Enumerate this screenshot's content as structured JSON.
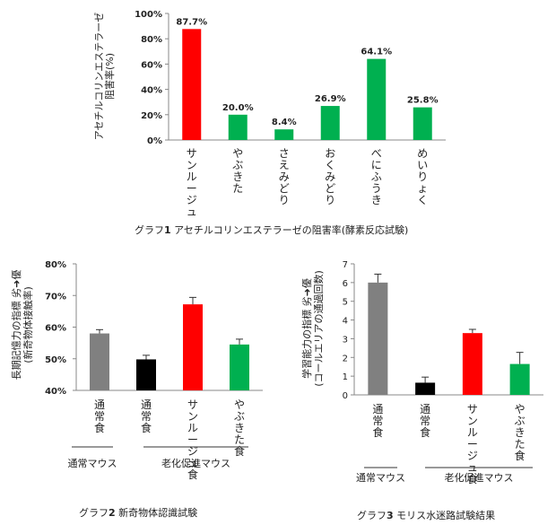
{
  "charts": [
    {
      "caption": {
        "prefix": "グラフ",
        "num": "1",
        "text": "アセチルコリンエステラーゼの阻害率(酵素反応試験)"
      }
    },
    {
      "caption": {
        "prefix": "グラフ",
        "num": "2",
        "text": "新奇物体認識試験"
      }
    },
    {
      "caption": {
        "prefix": "グラフ",
        "num": "3",
        "text": "モリス水迷路試験結果"
      }
    }
  ],
  "chart_data": [
    {
      "type": "bar",
      "ylabel_lines": [
        "アセチルコリンエステラーゼ",
        "阻害率(%)"
      ],
      "ylim": [
        0,
        100
      ],
      "yticks": [
        "0%",
        "20%",
        "40%",
        "60%",
        "80%",
        "100%"
      ],
      "categories": [
        "サンルージュ",
        "やぶきた",
        "さえみどり",
        "おくみどり",
        "べにふうき",
        "めいりょく"
      ],
      "values": [
        87.7,
        20.0,
        8.4,
        26.9,
        64.1,
        25.8
      ],
      "data_labels": [
        "87.7%",
        "20.0%",
        "8.4%",
        "26.9%",
        "64.1%",
        "25.8%"
      ],
      "colors": [
        "#ff0000",
        "#00b050",
        "#00b050",
        "#00b050",
        "#00b050",
        "#00b050"
      ]
    },
    {
      "type": "bar",
      "ylabel_lines": [
        "長期記憶力の指標 劣➜優",
        "(新奇物体接触率)"
      ],
      "ylim": [
        40,
        80
      ],
      "yticks": [
        "40%",
        "50%",
        "60%",
        "70%",
        "80%"
      ],
      "categories": [
        "通常食",
        "通常食",
        "サンルージュ食",
        "やぶきた食"
      ],
      "values": [
        58.0,
        49.8,
        67.2,
        54.5
      ],
      "errors": [
        1.2,
        1.3,
        2.2,
        1.7
      ],
      "colors": [
        "#808080",
        "#000000",
        "#ff0000",
        "#00b050"
      ],
      "groups": [
        {
          "label": "通常マウス",
          "from": 0,
          "to": 0
        },
        {
          "label": "老化促進マウス",
          "from": 1,
          "to": 3
        }
      ]
    },
    {
      "type": "bar",
      "ylabel_lines": [
        "学習能力の指標 劣➜優",
        "(コールエリアの通過回数)"
      ],
      "ylim": [
        0,
        7
      ],
      "yticks": [
        "0",
        "1",
        "2",
        "3",
        "4",
        "5",
        "6",
        "7"
      ],
      "categories": [
        "通常食",
        "通常食",
        "サンルージュ食",
        "やぶきた食"
      ],
      "values": [
        6.0,
        0.65,
        3.3,
        1.65
      ],
      "errors": [
        0.45,
        0.3,
        0.2,
        0.62
      ],
      "colors": [
        "#808080",
        "#000000",
        "#ff0000",
        "#00b050"
      ],
      "groups": [
        {
          "label": "通常マウス",
          "from": 0,
          "to": 0
        },
        {
          "label": "老化促進マウス",
          "from": 1,
          "to": 3
        }
      ]
    }
  ]
}
